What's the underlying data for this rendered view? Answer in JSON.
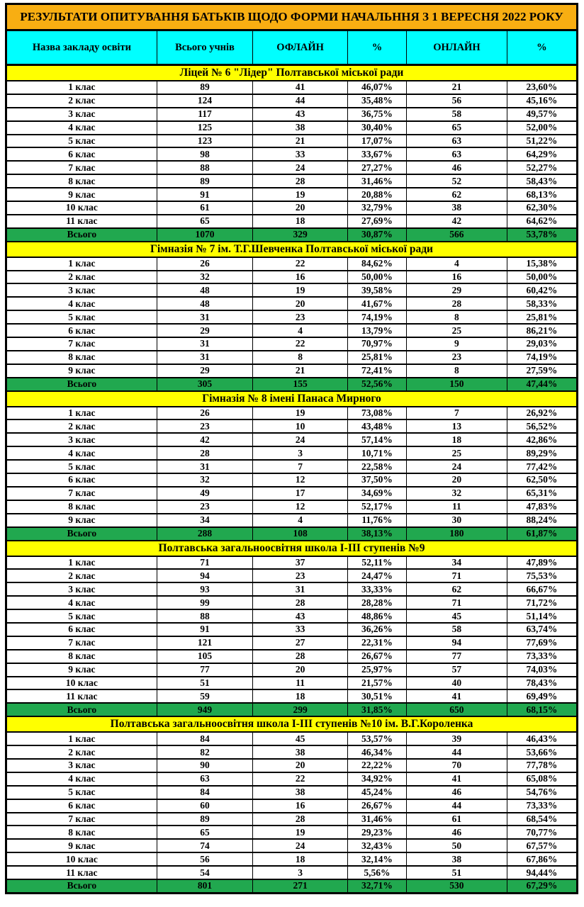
{
  "title": "РЕЗУЛЬТАТИ ОПИТУВАННЯ БАТЬКІВ ЩОДО ФОРМИ НАЧАЛЬННЯ З 1 ВЕРЕСНЯ 2022 РОКУ",
  "columns": [
    "Назва закладу освіти",
    "Всього учнів",
    "ОФЛАЙН",
    "%",
    "ОНЛАЙН",
    "%"
  ],
  "colors": {
    "title_bg": "#F8AE12",
    "header_bg": "#00FFFF",
    "school_bg": "#FFFF00",
    "total_bg": "#21A84F",
    "border": "#000000",
    "text": "#000000"
  },
  "sections": [
    {
      "name": "Ліцей № 6 \"Лідер\" Полтавської міської ради",
      "rows": [
        [
          "1 клас",
          "89",
          "41",
          "46,07%",
          "21",
          "23,60%"
        ],
        [
          "2 клас",
          "124",
          "44",
          "35,48%",
          "56",
          "45,16%"
        ],
        [
          "3 клас",
          "117",
          "43",
          "36,75%",
          "58",
          "49,57%"
        ],
        [
          "4 клас",
          "125",
          "38",
          "30,40%",
          "65",
          "52,00%"
        ],
        [
          "5 клас",
          "123",
          "21",
          "17,07%",
          "63",
          "51,22%"
        ],
        [
          "6 клас",
          "98",
          "33",
          "33,67%",
          "63",
          "64,29%"
        ],
        [
          "7 клас",
          "88",
          "24",
          "27,27%",
          "46",
          "52,27%"
        ],
        [
          "8 клас",
          "89",
          "28",
          "31,46%",
          "52",
          "58,43%"
        ],
        [
          "9 клас",
          "91",
          "19",
          "20,88%",
          "62",
          "68,13%"
        ],
        [
          "10 клас",
          "61",
          "20",
          "32,79%",
          "38",
          "62,30%"
        ],
        [
          "11 клас",
          "65",
          "18",
          "27,69%",
          "42",
          "64,62%"
        ]
      ],
      "total": [
        "Всього",
        "1070",
        "329",
        "30,87%",
        "566",
        "53,78%"
      ]
    },
    {
      "name": "Гімназія № 7 ім. Т.Г.Шевченка Полтавської міської ради",
      "rows": [
        [
          "1 клас",
          "26",
          "22",
          "84,62%",
          "4",
          "15,38%"
        ],
        [
          "2 клас",
          "32",
          "16",
          "50,00%",
          "16",
          "50,00%"
        ],
        [
          "3 клас",
          "48",
          "19",
          "39,58%",
          "29",
          "60,42%"
        ],
        [
          "4 клас",
          "48",
          "20",
          "41,67%",
          "28",
          "58,33%"
        ],
        [
          "5 клас",
          "31",
          "23",
          "74,19%",
          "8",
          "25,81%"
        ],
        [
          "6 клас",
          "29",
          "4",
          "13,79%",
          "25",
          "86,21%"
        ],
        [
          "7 клас",
          "31",
          "22",
          "70,97%",
          "9",
          "29,03%"
        ],
        [
          "8 клас",
          "31",
          "8",
          "25,81%",
          "23",
          "74,19%"
        ],
        [
          "9 клас",
          "29",
          "21",
          "72,41%",
          "8",
          "27,59%"
        ]
      ],
      "total": [
        "Всього",
        "305",
        "155",
        "52,56%",
        "150",
        "47,44%"
      ]
    },
    {
      "name": "Гімназія № 8 імені Панаса Мирного",
      "rows": [
        [
          "1 клас",
          "26",
          "19",
          "73,08%",
          "7",
          "26,92%"
        ],
        [
          "2 клас",
          "23",
          "10",
          "43,48%",
          "13",
          "56,52%"
        ],
        [
          "3 клас",
          "42",
          "24",
          "57,14%",
          "18",
          "42,86%"
        ],
        [
          "4 клас",
          "28",
          "3",
          "10,71%",
          "25",
          "89,29%"
        ],
        [
          "5 клас",
          "31",
          "7",
          "22,58%",
          "24",
          "77,42%"
        ],
        [
          "6 клас",
          "32",
          "12",
          "37,50%",
          "20",
          "62,50%"
        ],
        [
          "7 клас",
          "49",
          "17",
          "34,69%",
          "32",
          "65,31%"
        ],
        [
          "8 клас",
          "23",
          "12",
          "52,17%",
          "11",
          "47,83%"
        ],
        [
          "9 клас",
          "34",
          "4",
          "11,76%",
          "30",
          "88,24%"
        ]
      ],
      "total": [
        "Всього",
        "288",
        "108",
        "38,13%",
        "180",
        "61,87%"
      ]
    },
    {
      "name": "Полтавська загальноосвітня школа І-ІІІ ступенів №9",
      "rows": [
        [
          "1 клас",
          "71",
          "37",
          "52,11%",
          "34",
          "47,89%"
        ],
        [
          "2 клас",
          "94",
          "23",
          "24,47%",
          "71",
          "75,53%"
        ],
        [
          "3 клас",
          "93",
          "31",
          "33,33%",
          "62",
          "66,67%"
        ],
        [
          "4 клас",
          "99",
          "28",
          "28,28%",
          "71",
          "71,72%"
        ],
        [
          "5 клас",
          "88",
          "43",
          "48,86%",
          "45",
          "51,14%"
        ],
        [
          "6 клас",
          "91",
          "33",
          "36,26%",
          "58",
          "63,74%"
        ],
        [
          "7 клас",
          "121",
          "27",
          "22,31%",
          "94",
          "77,69%"
        ],
        [
          "8 клас",
          "105",
          "28",
          "26,67%",
          "77",
          "73,33%"
        ],
        [
          "9 клас",
          "77",
          "20",
          "25,97%",
          "57",
          "74,03%"
        ],
        [
          "10 клас",
          "51",
          "11",
          "21,57%",
          "40",
          "78,43%"
        ],
        [
          "11 клас",
          "59",
          "18",
          "30,51%",
          "41",
          "69,49%"
        ]
      ],
      "total": [
        "Всього",
        "949",
        "299",
        "31,85%",
        "650",
        "68,15%"
      ]
    },
    {
      "name": "Полтавська загальноосвітня школа І-ІІІ ступенів №10 ім. В.Г.Короленка",
      "rows": [
        [
          "1 клас",
          "84",
          "45",
          "53,57%",
          "39",
          "46,43%"
        ],
        [
          "2 клас",
          "82",
          "38",
          "46,34%",
          "44",
          "53,66%"
        ],
        [
          "3 клас",
          "90",
          "20",
          "22,22%",
          "70",
          "77,78%"
        ],
        [
          "4 клас",
          "63",
          "22",
          "34,92%",
          "41",
          "65,08%"
        ],
        [
          "5 клас",
          "84",
          "38",
          "45,24%",
          "46",
          "54,76%"
        ],
        [
          "6 клас",
          "60",
          "16",
          "26,67%",
          "44",
          "73,33%"
        ],
        [
          "7 клас",
          "89",
          "28",
          "31,46%",
          "61",
          "68,54%"
        ],
        [
          "8 клас",
          "65",
          "19",
          "29,23%",
          "46",
          "70,77%"
        ],
        [
          "9 клас",
          "74",
          "24",
          "32,43%",
          "50",
          "67,57%"
        ],
        [
          "10 клас",
          "56",
          "18",
          "32,14%",
          "38",
          "67,86%"
        ],
        [
          "11 клас",
          "54",
          "3",
          "5,56%",
          "51",
          "94,44%"
        ]
      ],
      "total": [
        "Всього",
        "801",
        "271",
        "32,71%",
        "530",
        "67,29%"
      ]
    }
  ]
}
